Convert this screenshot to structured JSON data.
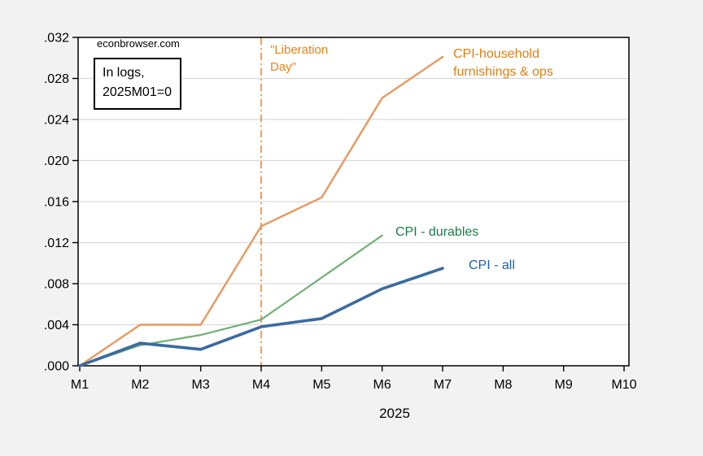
{
  "branding": "econbrowser.com",
  "note_box": {
    "line1": "In logs,",
    "line2": "2025M01=0"
  },
  "annotations": {
    "liberation_day": {
      "line1": "\"Liberation",
      "line2": "Day\""
    }
  },
  "colors": {
    "background": "#f2f2f2",
    "plot_background": "#ffffff",
    "gridline": "#d9d9d9",
    "frame": "#000000"
  },
  "chart_data": {
    "type": "line",
    "title": "",
    "xlabel": "2025",
    "ylabel": "",
    "categories": [
      "M1",
      "M2",
      "M3",
      "M4",
      "M5",
      "M6",
      "M7",
      "M8",
      "M9",
      "M10"
    ],
    "ylim": [
      0,
      0.032
    ],
    "ytick_labels": [
      ".000",
      ".004",
      ".008",
      ".012",
      ".016",
      ".020",
      ".024",
      ".028",
      ".032"
    ],
    "grid": "horizontal",
    "legend_position": "inline-labels",
    "vline": {
      "at_category": "M4",
      "style": "dash-dot",
      "color": "#f08115",
      "label_color": "#f08115"
    },
    "series": [
      {
        "name": "CPI-household furnishings & ops",
        "label_line1": "CPI-household",
        "label_line2": "furnishings & ops",
        "color": "#e8995e",
        "label_color": "#df7f10",
        "line_width": 2.4,
        "x": [
          1,
          2,
          3,
          4,
          5,
          6,
          7
        ],
        "values": [
          0.0,
          0.004,
          0.004,
          0.0136,
          0.0164,
          0.0261,
          0.0301
        ]
      },
      {
        "name": "CPI - durables",
        "label_line1": "CPI - durables",
        "label_line2": "",
        "color": "#72b077",
        "label_color": "#1a7c4a",
        "line_width": 2.2,
        "x": [
          1,
          2,
          3,
          4,
          5,
          6
        ],
        "values": [
          0.0,
          0.002,
          0.003,
          0.0045,
          0.0086,
          0.0127
        ]
      },
      {
        "name": "CPI - all",
        "label_line1": "CPI - all",
        "label_line2": "",
        "color": "#3a6b9e",
        "label_color": "#1d5fa6",
        "line_width": 3.6,
        "x": [
          1,
          2,
          3,
          4,
          5,
          6,
          7
        ],
        "values": [
          0.0,
          0.0022,
          0.0016,
          0.0038,
          0.0046,
          0.0075,
          0.0095
        ]
      }
    ]
  }
}
